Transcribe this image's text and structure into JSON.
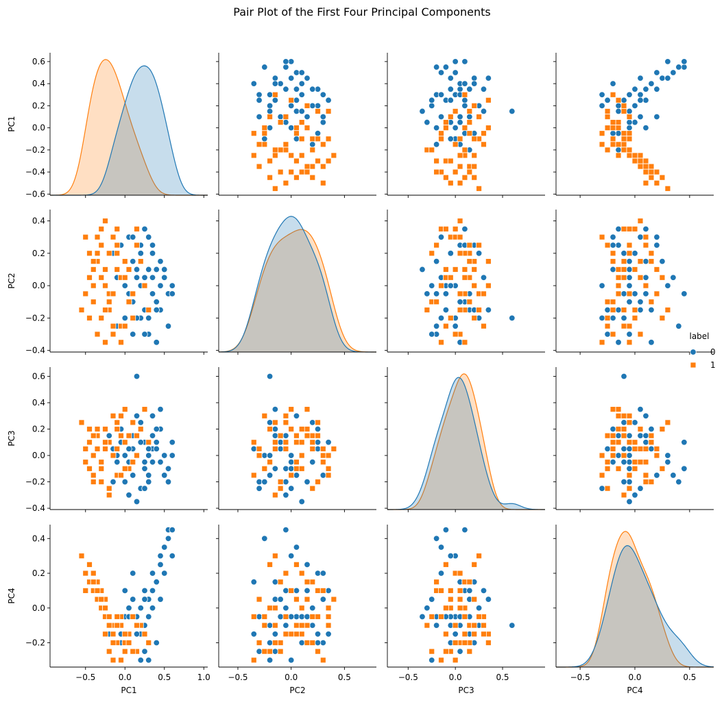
{
  "chart_data": {
    "type": "scatter",
    "title": "Pair Plot of the First Four Principal Components",
    "variables": [
      "PC1",
      "PC2",
      "PC3",
      "PC4"
    ],
    "axes": {
      "PC1": {
        "range": [
          -0.95,
          1.05
        ],
        "ticks": [
          -0.5,
          0.0,
          0.5,
          1.0
        ],
        "row_range": [
          -0.61,
          0.68
        ],
        "row_ticks": [
          -0.6,
          -0.4,
          -0.2,
          0.0,
          0.2,
          0.4,
          0.6
        ]
      },
      "PC2": {
        "range": [
          -0.68,
          0.8
        ],
        "ticks": [
          -0.5,
          0.0,
          0.5
        ],
        "row_range": [
          -0.41,
          0.47
        ],
        "row_ticks": [
          -0.4,
          -0.2,
          0.0,
          0.2,
          0.4
        ]
      },
      "PC3": {
        "range": [
          -0.72,
          0.95
        ],
        "ticks": [
          -0.5,
          0.0,
          0.5
        ],
        "row_range": [
          -0.41,
          0.67
        ],
        "row_ticks": [
          -0.4,
          -0.2,
          0.0,
          0.2,
          0.4,
          0.6
        ]
      },
      "PC4": {
        "range": [
          -0.72,
          0.72
        ],
        "ticks": [
          -0.5,
          0.0,
          0.5
        ],
        "row_range": [
          -0.34,
          0.48
        ],
        "row_ticks": [
          -0.2,
          0.0,
          0.2,
          0.4
        ]
      }
    },
    "legend": {
      "title": "label",
      "placement": "right",
      "entries": [
        {
          "label": "0",
          "marker": "circle",
          "color": "#1f77b4"
        },
        {
          "label": "1",
          "marker": "square",
          "color": "#ff7f0e"
        }
      ]
    },
    "series": [
      {
        "name": "0",
        "color": "#1f77b4",
        "marker": "circle",
        "points": [
          [
            0.45,
            -0.15,
            0.35,
            0.05
          ],
          [
            0.4,
            0.1,
            0.2,
            -0.2
          ],
          [
            0.55,
            -0.05,
            -0.1,
            0.45
          ],
          [
            0.35,
            0.25,
            0.05,
            0.2
          ],
          [
            0.3,
            -0.3,
            -0.2,
            -0.05
          ],
          [
            0.25,
            0.35,
            0.1,
            0.1
          ],
          [
            0.5,
            0.05,
            -0.15,
            0.35
          ],
          [
            0.2,
            -0.2,
            0.25,
            -0.1
          ],
          [
            0.35,
            0.2,
            -0.05,
            0.0
          ],
          [
            0.6,
            0.0,
            0.0,
            0.3
          ],
          [
            0.15,
            0.05,
            0.3,
            -0.15
          ],
          [
            0.1,
            -0.1,
            0.15,
            0.05
          ],
          [
            0.05,
            0.3,
            -0.05,
            -0.2
          ],
          [
            -0.1,
            -0.25,
            0.0,
            -0.05
          ],
          [
            0.0,
            0.15,
            -0.2,
            0.1
          ],
          [
            -0.05,
            -0.35,
            0.1,
            -0.15
          ],
          [
            0.2,
            0.0,
            -0.25,
            -0.3
          ],
          [
            0.4,
            -0.35,
            0.05,
            0.15
          ],
          [
            0.3,
            0.1,
            0.0,
            -0.05
          ],
          [
            0.05,
            -0.05,
            -0.3,
            0.0
          ],
          [
            -0.15,
            0.2,
            0.05,
            -0.1
          ],
          [
            0.25,
            -0.15,
            -0.1,
            -0.25
          ],
          [
            0.45,
            0.15,
            0.2,
            0.25
          ],
          [
            0.1,
            0.3,
            -0.15,
            0.2
          ],
          [
            0.15,
            -0.2,
            0.6,
            -0.1
          ],
          [
            -0.1,
            0.05,
            -0.05,
            -0.05
          ],
          [
            0.35,
            -0.05,
            0.15,
            0.1
          ],
          [
            0.2,
            0.25,
            0.1,
            -0.15
          ],
          [
            0.55,
            -0.25,
            -0.2,
            0.4
          ],
          [
            0.1,
            -0.3,
            0.05,
            -0.25
          ],
          [
            0.0,
            0.0,
            -0.1,
            -0.05
          ],
          [
            0.3,
            0.3,
            0.05,
            0.05
          ],
          [
            -0.2,
            -0.15,
            0.15,
            -0.15
          ],
          [
            0.15,
            0.1,
            -0.35,
            -0.05
          ],
          [
            0.4,
            -0.1,
            0.1,
            0.15
          ],
          [
            0.25,
            0.05,
            -0.05,
            -0.1
          ],
          [
            -0.05,
            0.25,
            0.2,
            -0.2
          ],
          [
            0.5,
            0.1,
            0.0,
            0.2
          ],
          [
            0.05,
            -0.1,
            0.05,
            -0.05
          ],
          [
            0.3,
            -0.2,
            -0.15,
            -0.3
          ],
          [
            0.2,
            0.2,
            0.25,
            0.0
          ],
          [
            0.6,
            -0.05,
            0.1,
            0.45
          ],
          [
            -0.15,
            -0.05,
            -0.2,
            -0.1
          ],
          [
            0.35,
            0.05,
            0.3,
            0.1
          ],
          [
            0.0,
            -0.2,
            0.0,
            -0.2
          ],
          [
            0.45,
            0.0,
            -0.05,
            0.3
          ],
          [
            0.1,
            0.15,
            0.15,
            -0.05
          ],
          [
            0.25,
            -0.3,
            -0.25,
            0.05
          ],
          [
            0.15,
            0.35,
            0.0,
            -0.15
          ],
          [
            0.4,
            -0.15,
            0.2,
            0.15
          ]
        ]
      },
      {
        "name": "1",
        "color": "#ff7f0e",
        "marker": "square",
        "points": [
          [
            -0.35,
            0.2,
            0.15,
            0.15
          ],
          [
            -0.45,
            0.05,
            -0.1,
            0.25
          ],
          [
            -0.25,
            0.4,
            0.05,
            0.05
          ],
          [
            -0.55,
            -0.15,
            0.25,
            0.3
          ],
          [
            -0.3,
            0.25,
            -0.2,
            0.1
          ],
          [
            -0.2,
            -0.05,
            0.1,
            -0.05
          ],
          [
            -0.4,
            0.1,
            0.0,
            0.2
          ],
          [
            -0.15,
            -0.25,
            0.3,
            -0.1
          ],
          [
            -0.5,
            0.3,
            -0.05,
            0.1
          ],
          [
            -0.25,
            0.0,
            0.2,
            -0.15
          ],
          [
            -0.1,
            0.35,
            -0.15,
            -0.05
          ],
          [
            -0.35,
            -0.3,
            0.05,
            0.05
          ],
          [
            0.0,
            0.15,
            0.35,
            -0.2
          ],
          [
            -0.2,
            -0.1,
            -0.25,
            -0.25
          ],
          [
            -0.45,
            0.2,
            0.1,
            0.15
          ],
          [
            -0.05,
            0.05,
            0.15,
            -0.1
          ],
          [
            -0.3,
            -0.2,
            -0.05,
            0.0
          ],
          [
            -0.15,
            0.3,
            0.0,
            -0.3
          ],
          [
            0.1,
            -0.05,
            0.25,
            -0.05
          ],
          [
            -0.4,
            0.0,
            -0.15,
            0.1
          ],
          [
            -0.25,
            -0.35,
            0.1,
            -0.05
          ],
          [
            -0.1,
            0.2,
            0.05,
            -0.2
          ],
          [
            0.05,
            0.1,
            -0.1,
            -0.15
          ],
          [
            -0.35,
            0.15,
            0.2,
            0.05
          ],
          [
            -0.2,
            -0.15,
            -0.3,
            -0.1
          ],
          [
            0.15,
            0.25,
            0.15,
            -0.25
          ],
          [
            -0.5,
            -0.05,
            0.05,
            0.2
          ],
          [
            -0.05,
            -0.25,
            0.3,
            -0.05
          ],
          [
            -0.3,
            0.35,
            -0.1,
            0.0
          ],
          [
            0.0,
            0.05,
            0.1,
            -0.15
          ],
          [
            -0.15,
            -0.3,
            0.0,
            -0.2
          ],
          [
            0.2,
            0.15,
            0.2,
            -0.1
          ],
          [
            -0.4,
            -0.1,
            -0.2,
            0.15
          ],
          [
            -0.1,
            0.25,
            0.25,
            -0.05
          ],
          [
            0.1,
            -0.2,
            -0.05,
            -0.25
          ],
          [
            -0.25,
            0.1,
            0.1,
            0.0
          ],
          [
            0.25,
            0.0,
            0.35,
            -0.15
          ],
          [
            -0.05,
            -0.35,
            -0.15,
            -0.3
          ],
          [
            -0.35,
            0.3,
            0.05,
            0.1
          ],
          [
            0.05,
            -0.1,
            0.15,
            -0.2
          ],
          [
            -0.2,
            0.2,
            -0.25,
            -0.05
          ],
          [
            -0.45,
            -0.2,
            0.2,
            0.25
          ],
          [
            0.15,
            0.35,
            0.0,
            -0.1
          ],
          [
            -0.15,
            -0.05,
            0.3,
            -0.15
          ],
          [
            -0.3,
            0.05,
            -0.05,
            0.05
          ],
          [
            0.3,
            -0.15,
            0.1,
            -0.2
          ],
          [
            -0.1,
            0.1,
            0.2,
            -0.1
          ],
          [
            0.0,
            -0.25,
            -0.1,
            -0.25
          ],
          [
            -0.4,
            0.15,
            0.15,
            0.15
          ],
          [
            -0.25,
            -0.15,
            0.05,
            0.0
          ]
        ]
      }
    ]
  }
}
